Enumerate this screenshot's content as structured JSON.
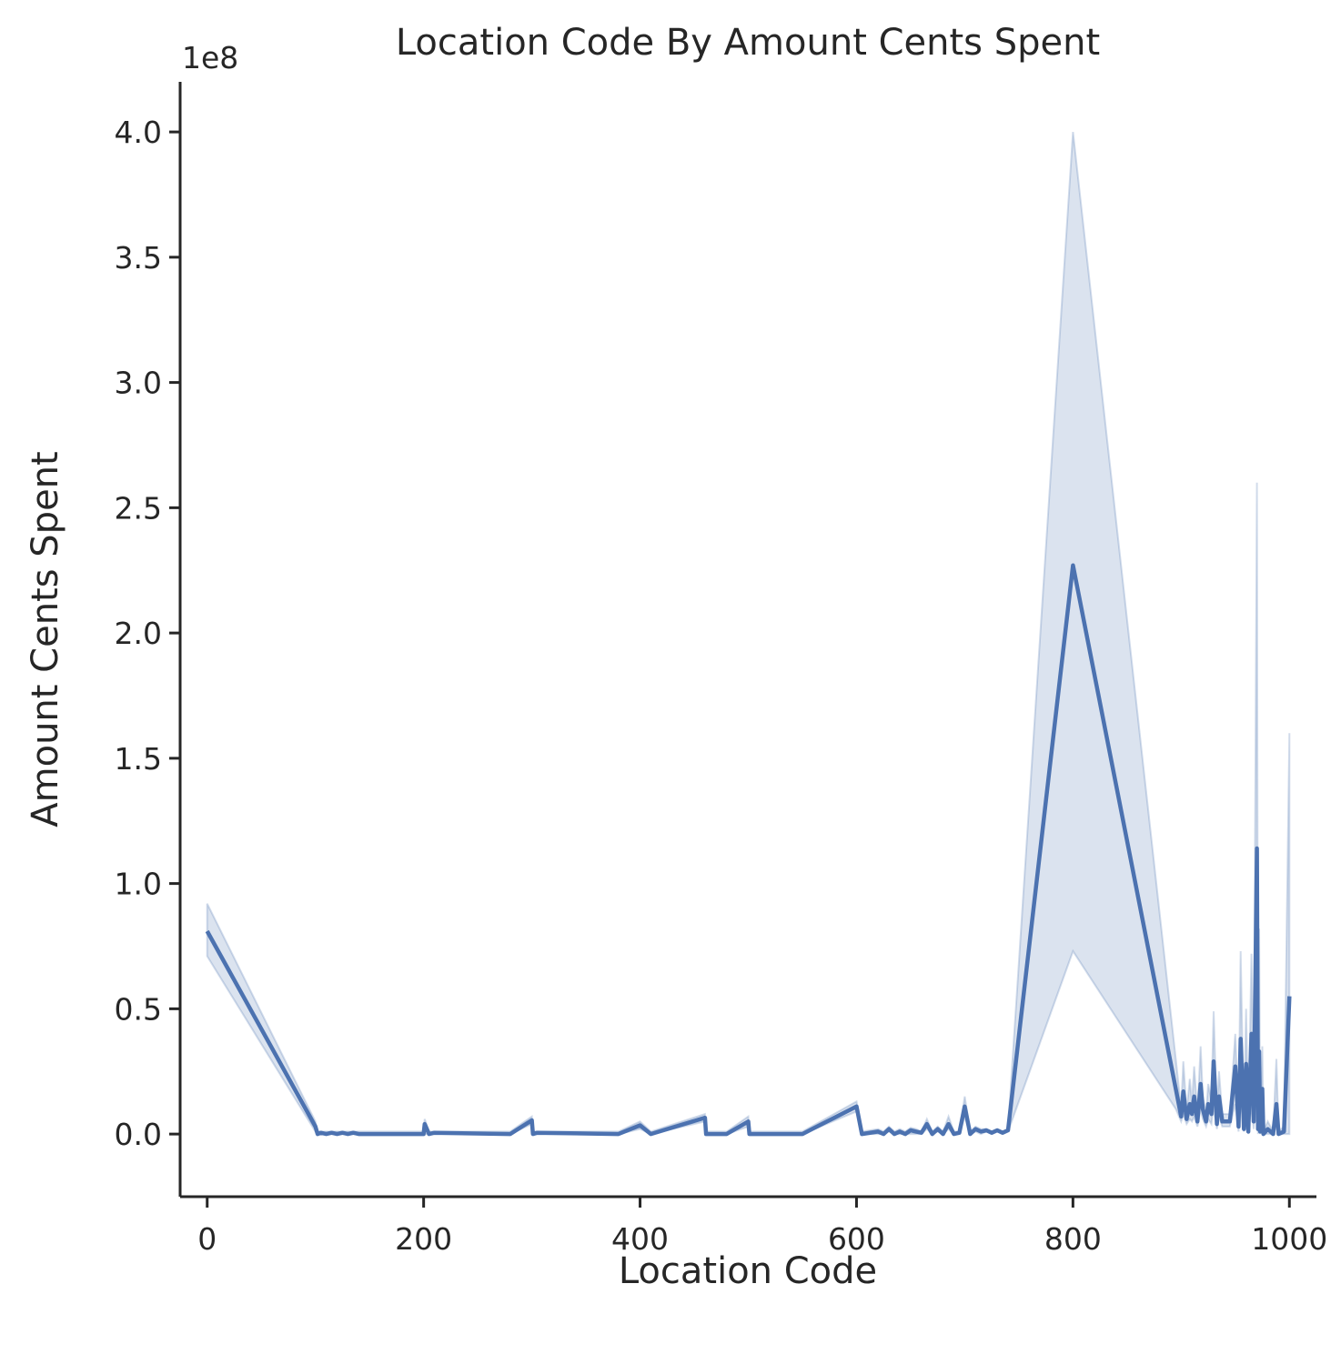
{
  "chart_data": {
    "type": "line",
    "title": "Location Code By Amount Cents Spent",
    "xlabel": "Location Code",
    "ylabel": "Amount Cents Spent",
    "y_offset_text": "1e8",
    "xlim": [
      -25,
      1025
    ],
    "ylim": [
      -0.25,
      4.2
    ],
    "y_unit_multiplier": 100000000,
    "xticks": [
      0,
      200,
      400,
      600,
      800,
      1000
    ],
    "xtick_labels": [
      "0",
      "200",
      "400",
      "600",
      "800",
      "1000"
    ],
    "yticks": [
      0.0,
      0.5,
      1.0,
      1.5,
      2.0,
      2.5,
      3.0,
      3.5,
      4.0
    ],
    "ytick_labels": [
      "0.0",
      "0.5",
      "1.0",
      "1.5",
      "2.0",
      "2.5",
      "3.0",
      "3.5",
      "4.0"
    ],
    "grid": false,
    "line_color": "#4c72b0",
    "band_color": "#4c72b0",
    "series": [
      {
        "x": [
          0,
          100,
          102,
          105,
          110,
          115,
          120,
          125,
          130,
          135,
          140,
          150,
          200,
          201,
          205,
          210,
          280,
          300,
          301,
          305,
          380,
          400,
          410,
          460,
          461,
          480,
          500,
          501,
          510,
          550,
          600,
          605,
          620,
          625,
          630,
          635,
          640,
          645,
          650,
          655,
          660,
          665,
          670,
          675,
          680,
          685,
          690,
          695,
          700,
          705,
          710,
          715,
          720,
          725,
          730,
          735,
          740,
          800,
          895,
          900,
          902,
          905,
          908,
          910,
          912,
          915,
          918,
          920,
          923,
          925,
          928,
          930,
          933,
          935,
          938,
          940,
          945,
          950,
          953,
          955,
          958,
          960,
          962,
          965,
          967,
          970,
          971,
          972,
          973,
          975,
          976,
          978,
          980,
          985,
          988,
          990,
          995,
          1000
        ],
        "y": [
          0.81,
          0.03,
          0.0,
          0.005,
          0.0,
          0.005,
          0.0,
          0.005,
          0.0,
          0.005,
          0.0,
          0.0,
          0.0,
          0.04,
          0.0,
          0.005,
          0.0,
          0.055,
          0.0,
          0.005,
          0.0,
          0.035,
          0.0,
          0.065,
          0.0,
          0.0,
          0.05,
          0.0,
          0.0,
          0.0,
          0.11,
          0.0,
          0.01,
          0.0,
          0.02,
          0.0,
          0.01,
          0.0,
          0.015,
          0.01,
          0.005,
          0.04,
          0.0,
          0.02,
          0.0,
          0.04,
          0.0,
          0.005,
          0.11,
          0.0,
          0.02,
          0.01,
          0.015,
          0.005,
          0.015,
          0.005,
          0.015,
          2.27,
          0.18,
          0.07,
          0.17,
          0.06,
          0.12,
          0.08,
          0.15,
          0.05,
          0.2,
          0.1,
          0.05,
          0.12,
          0.08,
          0.29,
          0.04,
          0.15,
          0.05,
          0.05,
          0.05,
          0.27,
          0.03,
          0.38,
          0.02,
          0.28,
          0.01,
          0.4,
          0.05,
          1.14,
          0.02,
          0.33,
          0.01,
          0.18,
          0.0,
          0.01,
          0.02,
          0.0,
          0.12,
          0.0,
          0.01,
          0.55
        ],
        "ci_lower": [
          0.71,
          0.01,
          0.0,
          0.0,
          0.0,
          0.0,
          0.0,
          0.0,
          0.0,
          0.0,
          0.0,
          0.0,
          0.0,
          0.0,
          0.0,
          0.0,
          0.0,
          0.04,
          0.0,
          0.0,
          0.0,
          0.02,
          0.0,
          0.05,
          0.0,
          0.0,
          0.03,
          0.0,
          0.0,
          0.0,
          0.09,
          0.0,
          0.0,
          0.0,
          0.01,
          0.0,
          0.0,
          0.0,
          0.0,
          0.0,
          0.0,
          0.02,
          0.0,
          0.01,
          0.0,
          0.02,
          0.0,
          0.0,
          0.07,
          0.0,
          0.01,
          0.0,
          0.01,
          0.0,
          0.01,
          0.0,
          0.01,
          0.73,
          0.1,
          0.05,
          0.08,
          0.04,
          0.06,
          0.05,
          0.07,
          0.03,
          0.1,
          0.06,
          0.03,
          0.06,
          0.04,
          0.12,
          0.02,
          0.07,
          0.03,
          0.03,
          0.03,
          0.12,
          0.01,
          0.15,
          0.01,
          0.1,
          0.0,
          0.12,
          0.02,
          0.25,
          0.0,
          0.1,
          0.0,
          0.05,
          0.0,
          0.0,
          0.0,
          0.0,
          0.03,
          0.0,
          0.0,
          0.0
        ],
        "ci_upper": [
          0.92,
          0.05,
          0.01,
          0.01,
          0.01,
          0.01,
          0.01,
          0.01,
          0.01,
          0.01,
          0.01,
          0.01,
          0.01,
          0.06,
          0.01,
          0.01,
          0.01,
          0.07,
          0.01,
          0.01,
          0.01,
          0.05,
          0.01,
          0.08,
          0.01,
          0.01,
          0.07,
          0.01,
          0.01,
          0.01,
          0.13,
          0.01,
          0.02,
          0.01,
          0.03,
          0.01,
          0.02,
          0.01,
          0.025,
          0.02,
          0.01,
          0.06,
          0.01,
          0.03,
          0.01,
          0.07,
          0.01,
          0.01,
          0.15,
          0.01,
          0.03,
          0.02,
          0.02,
          0.01,
          0.02,
          0.01,
          0.02,
          4.0,
          0.3,
          0.1,
          0.29,
          0.09,
          0.22,
          0.12,
          0.27,
          0.08,
          0.35,
          0.15,
          0.08,
          0.2,
          0.13,
          0.49,
          0.07,
          0.25,
          0.08,
          0.08,
          0.08,
          0.4,
          0.06,
          0.73,
          0.04,
          0.5,
          0.03,
          0.72,
          0.1,
          2.6,
          0.05,
          0.82,
          0.03,
          0.35,
          0.01,
          0.03,
          0.05,
          0.01,
          0.3,
          0.01,
          0.03,
          1.6
        ]
      }
    ]
  }
}
